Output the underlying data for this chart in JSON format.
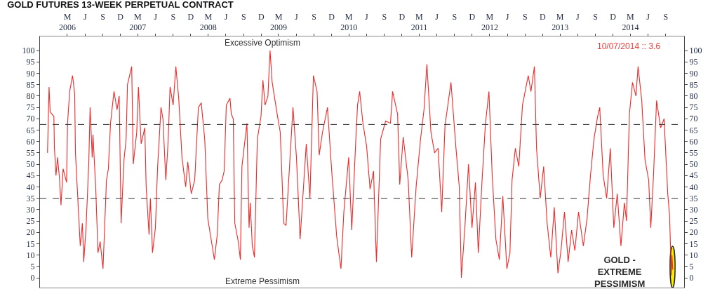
{
  "chart_data": {
    "type": "line",
    "title": "GOLD FUTURES 13-WEEK PERPETUAL CONTRACT",
    "annotations": [
      "Excessive Optimism",
      "Extreme Pessimism",
      "10/07/2014 :: 3.6",
      "GOLD -\nEXTREME\nPESSIMISM"
    ],
    "x": [
      "2005-11-18",
      "2005-11-26",
      "2005-12-02",
      "2005-12-21",
      "2005-12-24",
      "2006-01-01",
      "2006-01-09",
      "2006-01-19",
      "2006-01-27",
      "2006-02-07",
      "2006-02-25",
      "2006-03-02",
      "2006-03-13",
      "2006-03-28",
      "2006-04-08",
      "2006-04-12",
      "2006-05-07",
      "2006-05-18",
      "2006-05-25",
      "2006-06-06",
      "2006-06-20",
      "2006-06-27",
      "2006-07-08",
      "2006-07-12",
      "2006-07-26",
      "2006-08-07",
      "2006-08-18",
      "2006-09-02",
      "2006-09-20",
      "2006-09-30",
      "2006-10-11",
      "2006-10-29",
      "2006-11-14",
      "2006-11-25",
      "2006-12-05",
      "2006-12-20",
      "2006-12-31",
      "2007-01-07",
      "2007-01-18",
      "2007-01-29",
      "2007-02-06",
      "2007-02-24",
      "2007-03-05",
      "2007-03-19",
      "2007-04-07",
      "2007-04-14",
      "2007-04-29",
      "2007-05-06",
      "2007-05-17",
      "2007-06-01",
      "2007-06-12",
      "2007-06-30",
      "2007-07-10",
      "2007-07-25",
      "2007-08-06",
      "2007-08-16",
      "2007-09-01",
      "2007-09-15",
      "2007-09-30",
      "2007-10-17",
      "2007-11-05",
      "2007-11-16",
      "2007-12-04",
      "2007-12-22",
      "2008-01-10",
      "2008-01-25",
      "2008-02-12",
      "2008-02-28",
      "2008-03-18",
      "2008-04-02",
      "2008-04-17",
      "2008-04-28",
      "2008-05-12",
      "2008-05-23",
      "2008-06-03",
      "2008-06-22",
      "2008-06-29",
      "2008-07-09",
      "2008-07-17",
      "2008-08-04",
      "2008-08-15",
      "2008-08-23",
      "2008-09-18",
      "2008-09-29",
      "2008-10-05",
      "2008-10-16",
      "2008-10-27",
      "2008-11-11",
      "2008-11-30",
      "2008-12-10",
      "2008-12-21",
      "2009-01-05",
      "2009-01-16",
      "2009-01-27",
      "2009-02-22",
      "2009-03-10",
      "2009-03-28",
      "2009-04-09",
      "2009-05-15",
      "2009-06-02",
      "2009-06-21",
      "2009-07-23",
      "2009-08-11",
      "2009-08-29",
      "2009-09-17",
      "2009-09-28",
      "2009-10-15",
      "2009-11-10",
      "2009-12-02",
      "2009-12-28",
      "2010-01-19",
      "2010-02-03",
      "2010-02-28",
      "2010-03-16",
      "2010-04-04",
      "2010-04-15",
      "2010-04-26",
      "2010-05-13",
      "2010-06-01",
      "2010-06-19",
      "2010-07-07",
      "2010-07-22",
      "2010-08-13",
      "2010-09-08",
      "2010-10-03",
      "2010-10-14",
      "2010-11-09",
      "2010-11-20",
      "2010-12-08",
      "2011-01-03",
      "2011-01-21",
      "2011-02-13",
      "2011-03-08",
      "2011-03-26",
      "2011-04-10",
      "2011-05-01",
      "2011-05-20",
      "2011-06-07",
      "2011-06-26",
      "2011-07-13",
      "2011-08-13",
      "2011-09-07",
      "2011-09-25",
      "2011-10-06",
      "2011-10-24",
      "2011-11-12",
      "2011-11-30",
      "2011-12-18",
      "2012-01-02",
      "2012-01-20",
      "2012-02-08",
      "2012-02-26",
      "2012-03-14",
      "2012-04-02",
      "2012-04-20",
      "2012-05-08",
      "2012-05-29",
      "2012-06-14",
      "2012-06-25",
      "2012-07-12",
      "2012-07-30",
      "2012-08-18",
      "2012-09-17",
      "2012-10-01",
      "2012-10-19",
      "2012-10-30",
      "2012-11-18",
      "2012-12-06",
      "2012-12-24",
      "2013-01-12",
      "2013-01-30",
      "2013-02-18",
      "2013-03-06",
      "2013-03-24",
      "2013-04-12",
      "2013-04-30",
      "2013-05-17",
      "2013-06-05",
      "2013-06-30",
      "2013-07-19",
      "2013-08-06",
      "2013-08-24",
      "2013-09-12",
      "2013-09-23",
      "2013-10-11",
      "2013-10-29",
      "2013-11-17",
      "2013-12-05",
      "2013-12-23",
      "2014-01-11",
      "2014-01-29",
      "2014-02-09",
      "2014-02-24",
      "2014-03-12",
      "2014-03-30",
      "2014-04-10",
      "2014-04-29",
      "2014-05-16",
      "2014-06-04",
      "2014-06-15",
      "2014-06-29",
      "2014-07-15",
      "2014-08-05",
      "2014-08-23",
      "2014-09-11",
      "2014-09-20",
      "2014-09-30",
      "2014-10-03",
      "2014-10-07"
    ],
    "series": [
      {
        "color": "#ee2a2a",
        "values": [
          55,
          84,
          73,
          71,
          57,
          45,
          53,
          44,
          32,
          48,
          42,
          68,
          82,
          89,
          81,
          55,
          14,
          24,
          7,
          22,
          50,
          75,
          53,
          63,
          40,
          11,
          16,
          4,
          43,
          48,
          68,
          82,
          74,
          80,
          24,
          52,
          61,
          85,
          89,
          93,
          50,
          64,
          84,
          59,
          66,
          40,
          19,
          35,
          11,
          22,
          48,
          75,
          70,
          43,
          60,
          84,
          76,
          93,
          79,
          53,
          40,
          51,
          37,
          43,
          75,
          77,
          61,
          26,
          16,
          8,
          19,
          41,
          43,
          47,
          76,
          79,
          72,
          70,
          24,
          16,
          8,
          49,
          68,
          22,
          33,
          14,
          9,
          61,
          71,
          87,
          76,
          80,
          100,
          86,
          72,
          64,
          24,
          23,
          75,
          53,
          17,
          59,
          35,
          89,
          82,
          54,
          64,
          75,
          47,
          18,
          4,
          29,
          53,
          21,
          57,
          76,
          82,
          68,
          58,
          39,
          47,
          7,
          61,
          69,
          68,
          82,
          72,
          41,
          62,
          43,
          9,
          40,
          61,
          74,
          94,
          64,
          55,
          57,
          29,
          67,
          86,
          58,
          40,
          0,
          22,
          50,
          22,
          42,
          11,
          41,
          68,
          82,
          45,
          17,
          8,
          36,
          4,
          11,
          43,
          57,
          49,
          76,
          89,
          82,
          93,
          57,
          35,
          49,
          24,
          9,
          31,
          2,
          12,
          29,
          7,
          21,
          12,
          29,
          14,
          26,
          45,
          61,
          71,
          75,
          45,
          35,
          57,
          22,
          37,
          14,
          33,
          25,
          72,
          86,
          80,
          93,
          78,
          52,
          43,
          22,
          45,
          78,
          66,
          70,
          37,
          28,
          1,
          10,
          3.6
        ]
      }
    ],
    "xlim": [
      "2005-10-10",
      "2014-12-05"
    ],
    "xticks": [
      {
        "value": "2006-03",
        "label": "M\n2006"
      },
      {
        "value": "2006-06",
        "label": "J"
      },
      {
        "value": "2006-09",
        "label": "S"
      },
      {
        "value": "2006-12",
        "label": "D"
      },
      {
        "value": "2007-03",
        "label": "M\n2007"
      },
      {
        "value": "2007-06",
        "label": "J"
      },
      {
        "value": "2007-09",
        "label": "S"
      },
      {
        "value": "2007-12",
        "label": "D"
      },
      {
        "value": "2008-03",
        "label": "M\n2008"
      },
      {
        "value": "2008-06",
        "label": "J"
      },
      {
        "value": "2008-09",
        "label": "S"
      },
      {
        "value": "2008-12",
        "label": "D"
      },
      {
        "value": "2009-03",
        "label": "M\n2009"
      },
      {
        "value": "2009-06",
        "label": "J"
      },
      {
        "value": "2009-09",
        "label": "S"
      },
      {
        "value": "2009-12",
        "label": "D"
      },
      {
        "value": "2010-03",
        "label": "M\n2010"
      },
      {
        "value": "2010-06",
        "label": "J"
      },
      {
        "value": "2010-09",
        "label": "S"
      },
      {
        "value": "2010-12",
        "label": "D"
      },
      {
        "value": "2011-03",
        "label": "M\n2011"
      },
      {
        "value": "2011-06",
        "label": "J"
      },
      {
        "value": "2011-09",
        "label": "S"
      },
      {
        "value": "2011-12",
        "label": "D"
      },
      {
        "value": "2012-03",
        "label": "M\n2012"
      },
      {
        "value": "2012-06",
        "label": "J"
      },
      {
        "value": "2012-09",
        "label": "S"
      },
      {
        "value": "2012-12",
        "label": "D"
      },
      {
        "value": "2013-03",
        "label": "M\n2013"
      },
      {
        "value": "2013-06",
        "label": "J"
      },
      {
        "value": "2013-09",
        "label": "S"
      },
      {
        "value": "2013-12",
        "label": "D"
      },
      {
        "value": "2014-03",
        "label": "M\n2014"
      },
      {
        "value": "2014-06",
        "label": "J"
      },
      {
        "value": "2014-09",
        "label": "S"
      }
    ],
    "ylim": [
      -4.3,
      106.2
    ],
    "yticks": [
      0,
      5,
      10,
      15,
      20,
      25,
      30,
      35,
      40,
      45,
      50,
      55,
      60,
      65,
      70,
      75,
      80,
      85,
      90,
      95,
      100
    ],
    "y2lim": [
      -4.3,
      106.2
    ],
    "y2ticks": [
      0,
      5,
      10,
      15,
      20,
      25,
      30,
      35,
      40,
      45,
      50,
      55,
      60,
      65,
      70,
      75,
      80,
      85,
      90,
      95,
      100
    ],
    "ref_lines": [
      {
        "axis": "y",
        "value": 67.5,
        "color": "#333333",
        "line_style": "dashed"
      },
      {
        "axis": "y",
        "value": 35,
        "color": "#333333",
        "line_style": "dashed"
      }
    ],
    "grid": false,
    "marker": "none",
    "line_style": "solid"
  }
}
